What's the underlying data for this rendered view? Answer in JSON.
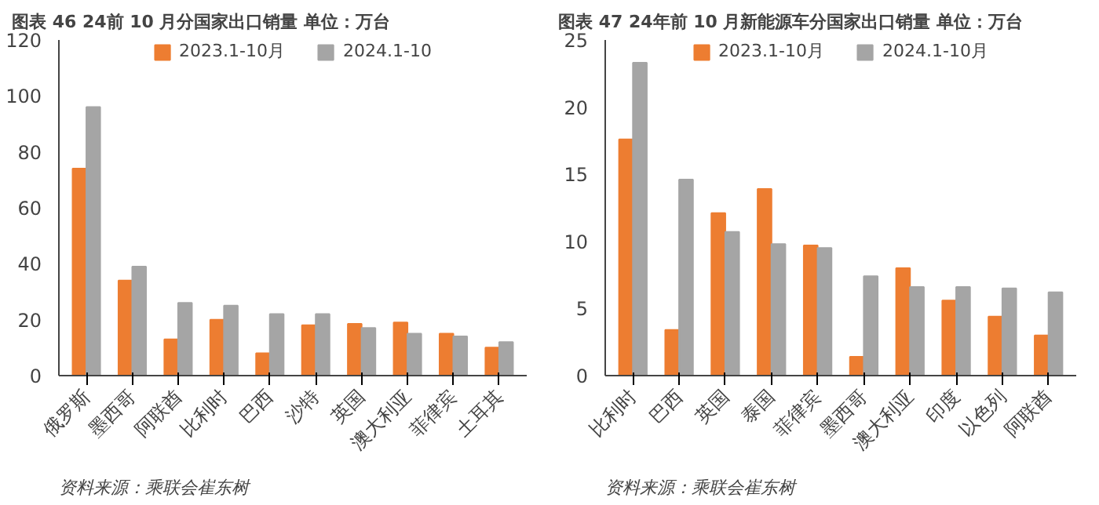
{
  "chart_data": [
    {
      "type": "bar",
      "title": "图表 46   24前 10 月分国家出口销量  单位：万台",
      "categories": [
        "俄罗斯",
        "墨西哥",
        "阿联酋",
        "比利时",
        "巴西",
        "沙特",
        "英国",
        "澳大利亚",
        "菲律宾",
        "土耳其"
      ],
      "series": [
        {
          "name": "2023.1-10月",
          "color": "#ed7d31",
          "values": [
            74,
            34,
            13,
            20,
            8,
            18,
            18.5,
            19,
            15,
            10
          ]
        },
        {
          "name": "2024.1-10",
          "color": "#a5a5a5",
          "values": [
            96,
            39,
            26,
            25,
            22,
            22,
            17,
            15,
            14,
            12
          ]
        }
      ],
      "ylim": [
        0,
        120
      ],
      "yticks": [
        0,
        20,
        40,
        60,
        80,
        100,
        120
      ],
      "grid": false,
      "legend": "top",
      "annotations": [
        "资料来源：乘联会崔东树"
      ]
    },
    {
      "type": "bar",
      "title": "图表 47   24年前 10 月新能源车分国家出口销量  单位：万台",
      "categories": [
        "比利时",
        "巴西",
        "英国",
        "泰国",
        "菲律宾",
        "墨西哥",
        "澳大利亚",
        "印度",
        "以色列",
        "阿联酋"
      ],
      "series": [
        {
          "name": "2023.1-10月",
          "color": "#ed7d31",
          "values": [
            17.6,
            3.4,
            12.1,
            13.9,
            9.7,
            1.4,
            8.0,
            5.6,
            4.4,
            3.0
          ]
        },
        {
          "name": "2024.1-10月",
          "color": "#a5a5a5",
          "values": [
            23.3,
            14.6,
            10.7,
            9.8,
            9.5,
            7.4,
            6.6,
            6.6,
            6.5,
            6.2
          ]
        }
      ],
      "ylim": [
        0,
        25
      ],
      "yticks": [
        0,
        5,
        10,
        15,
        20,
        25
      ],
      "grid": false,
      "legend": "top",
      "annotations": [
        "资料来源：乘联会崔东树"
      ]
    }
  ]
}
